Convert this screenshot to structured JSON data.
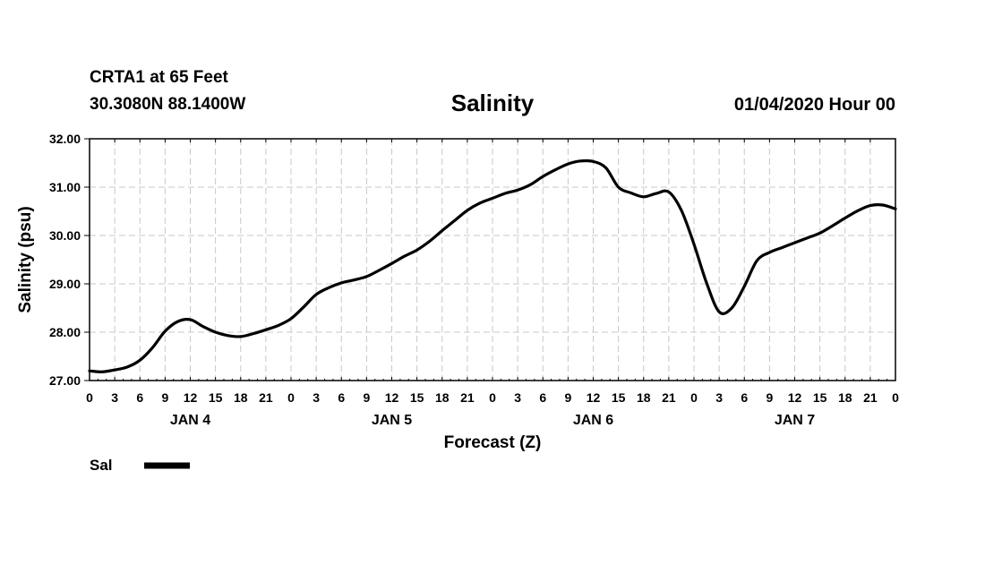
{
  "header": {
    "station": "CRTA1 at 65 Feet",
    "coords": "30.3080N 88.1400W",
    "title": "Salinity",
    "stamp": "01/04/2020 Hour 00"
  },
  "chart_data": {
    "type": "line",
    "title": "Salinity",
    "xlabel": "Forecast (Z)",
    "ylabel": "Salinity (psu)",
    "ylim": [
      27.0,
      32.0
    ],
    "yticks": [
      "27.00",
      "28.00",
      "29.00",
      "30.00",
      "31.00",
      "32.00"
    ],
    "x_hour_labels": [
      "0",
      "3",
      "6",
      "9",
      "12",
      "15",
      "18",
      "21",
      "0",
      "3",
      "6",
      "9",
      "12",
      "15",
      "18",
      "21",
      "0",
      "3",
      "6",
      "9",
      "12",
      "15",
      "18",
      "21",
      "0",
      "3",
      "6",
      "9",
      "12",
      "15",
      "18",
      "21",
      "0"
    ],
    "day_labels": [
      {
        "label": "JAN 4",
        "at_hour": 12
      },
      {
        "label": "JAN 5",
        "at_hour": 36
      },
      {
        "label": "JAN 6",
        "at_hour": 60
      },
      {
        "label": "JAN 7",
        "at_hour": 84
      }
    ],
    "xlim_hours": [
      0,
      96
    ],
    "grid": true,
    "legend_position": "bottom-left",
    "series": [
      {
        "name": "Sal",
        "color": "#000000",
        "x_hours": [
          0,
          1.5,
          3,
          4.5,
          6,
          7.5,
          9,
          10.5,
          12,
          13.5,
          15,
          16.5,
          18,
          19.5,
          21,
          22.5,
          24,
          25.5,
          27,
          28.5,
          30,
          31.5,
          33,
          34.5,
          36,
          37.5,
          39,
          40.5,
          42,
          43.5,
          45,
          46.5,
          48,
          49.5,
          51,
          52.5,
          54,
          55.5,
          57,
          58.5,
          60,
          61.5,
          63,
          64.5,
          66,
          67.5,
          69,
          70.5,
          72,
          73.5,
          75,
          76.5,
          78,
          79.5,
          81,
          82.5,
          84,
          85.5,
          87,
          88.5,
          90,
          91.5,
          93,
          94.5,
          96
        ],
        "values": [
          27.2,
          27.18,
          27.22,
          27.28,
          27.42,
          27.68,
          28.02,
          28.22,
          28.26,
          28.12,
          28.0,
          27.93,
          27.91,
          27.97,
          28.05,
          28.14,
          28.28,
          28.52,
          28.78,
          28.92,
          29.02,
          29.08,
          29.15,
          29.28,
          29.42,
          29.57,
          29.7,
          29.88,
          30.1,
          30.31,
          30.52,
          30.67,
          30.77,
          30.87,
          30.94,
          31.05,
          31.22,
          31.36,
          31.48,
          31.54,
          31.53,
          31.4,
          31.0,
          30.88,
          30.8,
          30.87,
          30.9,
          30.52,
          29.82,
          29.02,
          28.42,
          28.5,
          28.95,
          29.48,
          29.65,
          29.75,
          29.85,
          29.95,
          30.05,
          30.2,
          30.36,
          30.51,
          30.62,
          30.63,
          30.55
        ]
      }
    ]
  }
}
